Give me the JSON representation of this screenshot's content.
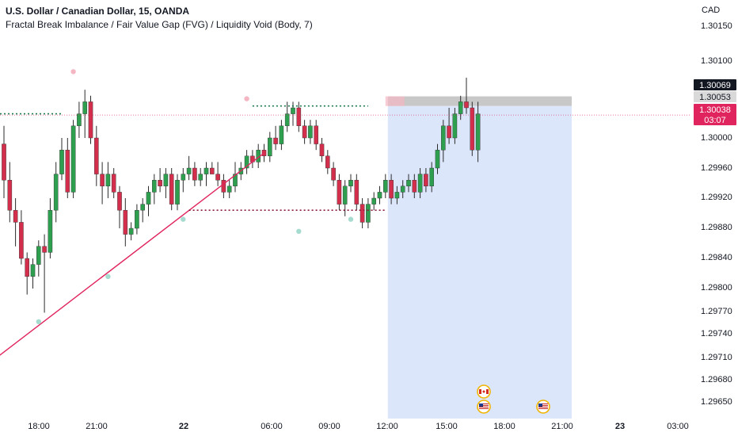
{
  "header": {
    "title": "U.S. Dollar / Canadian Dollar, 15, OANDA",
    "indicator": "Fractal Break Imbalance / Fair Value Gap (FVG) / Liquidity Void (Body, 7)"
  },
  "currency_label": "CAD",
  "colors": {
    "up": "#26a69a",
    "up_body": "#2e9e4f",
    "down": "#ef5350",
    "down_body": "#d32f4d",
    "trendline": "#e0245e",
    "dotted_green": "#1b7a4c",
    "dotted_maroon": "#8b1a3c",
    "projection": "#dbe6fb",
    "target_zone": "#c8c8c8",
    "price_badge_dark": "#131722",
    "price_badge_red": "#e0245e",
    "fractal_top": "#f4b6c2",
    "fractal_bottom": "#a6dccf"
  },
  "chart_data": {
    "type": "candlestick",
    "symbol": "U.S. Dollar / Canadian Dollar",
    "timeframe": "15",
    "source": "OANDA",
    "x_tick_labels": [
      "18:00",
      "21:00",
      "22",
      "06:00",
      "09:00",
      "12:00",
      "15:00",
      "18:00",
      "21:00",
      "23",
      "03:00"
    ],
    "y_tick_labels": [
      "1.30150",
      "1.30100",
      "1.30000",
      "1.29960",
      "1.29920",
      "1.29880",
      "1.29840",
      "1.29800",
      "1.29770",
      "1.29740",
      "1.29710",
      "1.29680",
      "1.29650"
    ],
    "price_labels": [
      {
        "value": "1.30069",
        "style": "dark"
      },
      {
        "value": "1.30053",
        "style": "gray"
      },
      {
        "value": "1.30038",
        "style": "red"
      },
      {
        "value": "03:07",
        "style": "red"
      }
    ],
    "candles": [
      [
        1.2999,
        1.3002,
        1.299,
        1.2993
      ],
      [
        1.2993,
        1.2996,
        1.2986,
        1.2988
      ],
      [
        1.2988,
        1.299,
        1.2982,
        1.2986
      ],
      [
        1.2986,
        1.2988,
        1.2979,
        1.298
      ],
      [
        1.298,
        1.2981,
        1.2974,
        1.2977
      ],
      [
        1.2977,
        1.298,
        1.2975,
        1.2979
      ],
      [
        1.2979,
        1.2983,
        1.2977,
        1.2982
      ],
      [
        1.2982,
        1.2984,
        1.2971,
        1.2981
      ],
      [
        1.2981,
        1.299,
        1.298,
        1.2988
      ],
      [
        1.2988,
        1.2996,
        1.2986,
        1.2994
      ],
      [
        1.2994,
        1.3,
        1.2993,
        1.2998
      ],
      [
        1.2998,
        1.3,
        1.299,
        1.2991
      ],
      [
        1.2991,
        1.3003,
        1.299,
        1.3002
      ],
      [
        1.3002,
        1.3006,
        1.3,
        1.3004
      ],
      [
        1.3004,
        1.3008,
        1.3,
        1.3006
      ],
      [
        1.3006,
        1.3007,
        1.2999,
        1.3
      ],
      [
        1.3,
        1.3002,
        1.2992,
        1.2994
      ],
      [
        1.2994,
        1.2996,
        1.2989,
        1.2992
      ],
      [
        1.2992,
        1.2996,
        1.299,
        1.2994
      ],
      [
        1.2994,
        1.2995,
        1.299,
        1.2991
      ],
      [
        1.2991,
        1.2992,
        1.2985,
        1.2988
      ],
      [
        1.2988,
        1.299,
        1.2982,
        1.2984
      ],
      [
        1.2984,
        1.2986,
        1.2983,
        1.2985
      ],
      [
        1.2985,
        1.2989,
        1.2984,
        1.2988
      ],
      [
        1.2988,
        1.299,
        1.2986,
        1.2989
      ],
      [
        1.2989,
        1.2992,
        1.2987,
        1.2991
      ],
      [
        1.2991,
        1.2994,
        1.2989,
        1.2993
      ],
      [
        1.2993,
        1.2995,
        1.2991,
        1.2992
      ],
      [
        1.2992,
        1.2995,
        1.299,
        1.2994
      ],
      [
        1.2994,
        1.2995,
        1.2988,
        1.2989
      ],
      [
        1.2989,
        1.2994,
        1.2988,
        1.2993
      ],
      [
        1.2993,
        1.2995,
        1.2991,
        1.2994
      ],
      [
        1.2994,
        1.2997,
        1.2993,
        1.2995
      ],
      [
        1.2995,
        1.2996,
        1.2992,
        1.2993
      ],
      [
        1.2993,
        1.2995,
        1.2992,
        1.2994
      ],
      [
        1.2994,
        1.2996,
        1.2992,
        1.2995
      ],
      [
        1.2995,
        1.2996,
        1.2994,
        1.2994
      ],
      [
        1.2994,
        1.2996,
        1.2992,
        1.2993
      ],
      [
        1.2993,
        1.2994,
        1.299,
        1.2991
      ],
      [
        1.2991,
        1.2993,
        1.299,
        1.2992
      ],
      [
        1.2992,
        1.2996,
        1.2991,
        1.2994
      ],
      [
        1.2994,
        1.2996,
        1.2993,
        1.2995
      ],
      [
        1.2995,
        1.2998,
        1.2994,
        1.2997
      ],
      [
        1.2997,
        1.2998,
        1.2995,
        1.2996
      ],
      [
        1.2996,
        1.2999,
        1.2995,
        1.2998
      ],
      [
        1.2998,
        1.2999,
        1.2996,
        1.2997
      ],
      [
        1.2997,
        1.3001,
        1.2996,
        1.3
      ],
      [
        1.3,
        1.3002,
        1.2998,
        1.2999
      ],
      [
        1.2999,
        1.3003,
        1.2998,
        1.3002
      ],
      [
        1.3002,
        1.3006,
        1.3001,
        1.3004
      ],
      [
        1.3004,
        1.3006,
        1.3002,
        1.3005
      ],
      [
        1.3005,
        1.3006,
        1.3001,
        1.3002
      ],
      [
        1.3002,
        1.3003,
        1.2999,
        1.3
      ],
      [
        1.3,
        1.3003,
        1.2999,
        1.3002
      ],
      [
        1.3002,
        1.3003,
        1.2998,
        1.2999
      ],
      [
        1.2999,
        1.3,
        1.2996,
        1.2997
      ],
      [
        1.2997,
        1.2998,
        1.2994,
        1.2995
      ],
      [
        1.2995,
        1.2996,
        1.2992,
        1.2993
      ],
      [
        1.2993,
        1.2994,
        1.2988,
        1.2989
      ],
      [
        1.2989,
        1.2993,
        1.2987,
        1.2992
      ],
      [
        1.2992,
        1.2994,
        1.2991,
        1.2993
      ],
      [
        1.2993,
        1.2994,
        1.2988,
        1.2989
      ],
      [
        1.2989,
        1.299,
        1.2985,
        1.2986
      ],
      [
        1.2986,
        1.299,
        1.2985,
        1.2989
      ],
      [
        1.2989,
        1.2991,
        1.2988,
        1.299
      ],
      [
        1.299,
        1.2992,
        1.2989,
        1.2991
      ],
      [
        1.2991,
        1.2994,
        1.299,
        1.2993
      ],
      [
        1.2993,
        1.2994,
        1.2989,
        1.299
      ],
      [
        1.299,
        1.2992,
        1.2989,
        1.2991
      ],
      [
        1.2991,
        1.2993,
        1.299,
        1.2992
      ],
      [
        1.2992,
        1.2994,
        1.2991,
        1.2993
      ],
      [
        1.2993,
        1.2994,
        1.299,
        1.2991
      ],
      [
        1.2991,
        1.2995,
        1.299,
        1.2994
      ],
      [
        1.2994,
        1.2995,
        1.2991,
        1.2992
      ],
      [
        1.2992,
        1.2996,
        1.2991,
        1.2995
      ],
      [
        1.2995,
        1.2999,
        1.2994,
        1.2998
      ],
      [
        1.2998,
        1.3003,
        1.2996,
        1.3002
      ],
      [
        1.3002,
        1.3005,
        1.2999,
        1.3
      ],
      [
        1.3,
        1.3005,
        1.2999,
        1.3004
      ],
      [
        1.3004,
        1.3007,
        1.3003,
        1.3006
      ],
      [
        1.3006,
        1.301,
        1.3004,
        1.3005
      ],
      [
        1.3005,
        1.3006,
        1.2997,
        1.2998
      ],
      [
        1.2998,
        1.3006,
        1.2996,
        1.3004
      ]
    ],
    "trendline": {
      "from_index": -2,
      "from_price": 1.2963,
      "to_index": 45,
      "to_price": 1.29975
    },
    "levels": [
      {
        "price": 1.30053,
        "from_index": 43,
        "to_index": 63,
        "style": "dotted_green"
      },
      {
        "price": 1.3004,
        "from_index": -3,
        "to_index": 10,
        "style": "dotted_green"
      },
      {
        "price": 1.2988,
        "from_index": 32,
        "to_index": 66,
        "style": "dotted_maroon"
      }
    ],
    "current_price": 1.30038,
    "target_zone": {
      "top": 1.30069,
      "bottom": 1.30053
    },
    "projection_from_index": 66,
    "projection_to_time_label": "21:00"
  }
}
